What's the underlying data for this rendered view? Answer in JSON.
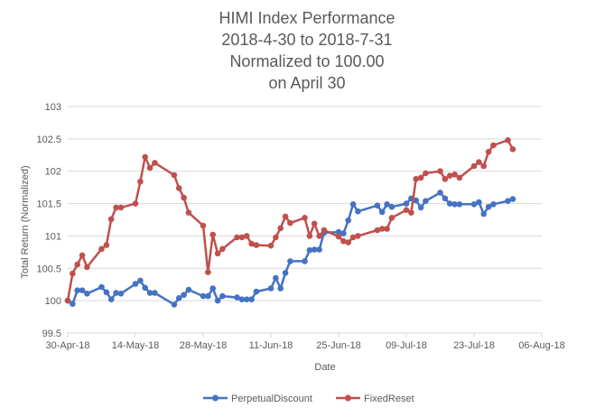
{
  "chart_data": {
    "type": "line",
    "title": [
      "HIMI Index Performance",
      "2018-4-30 to 2018-7-31",
      "Normalized to 100.00",
      "on April 30"
    ],
    "xlabel": "Date",
    "ylabel": "Total Return (Normalized)",
    "x_ticks": [
      "30-Apr-18",
      "14-May-18",
      "28-May-18",
      "11-Jun-18",
      "25-Jun-18",
      "09-Jul-18",
      "23-Jul-18",
      "06-Aug-18"
    ],
    "xlim": [
      "2018-04-30",
      "2018-08-06"
    ],
    "ylim": [
      99.5,
      103
    ],
    "y_ticks": [
      "99.5",
      "100",
      "100.5",
      "101",
      "101.5",
      "102",
      "102.5",
      "103"
    ],
    "grid": true,
    "legend_position": "bottom",
    "colors": {
      "PerpetualDiscount": "#4472c4",
      "FixedReset": "#c0504d"
    },
    "series": [
      {
        "name": "PerpetualDiscount",
        "x": [
          "2018-04-30",
          "2018-05-01",
          "2018-05-02",
          "2018-05-03",
          "2018-05-04",
          "2018-05-07",
          "2018-05-08",
          "2018-05-09",
          "2018-05-10",
          "2018-05-11",
          "2018-05-14",
          "2018-05-15",
          "2018-05-16",
          "2018-05-17",
          "2018-05-18",
          "2018-05-22",
          "2018-05-23",
          "2018-05-24",
          "2018-05-25",
          "2018-05-28",
          "2018-05-29",
          "2018-05-30",
          "2018-05-31",
          "2018-06-01",
          "2018-06-04",
          "2018-06-05",
          "2018-06-06",
          "2018-06-07",
          "2018-06-08",
          "2018-06-11",
          "2018-06-12",
          "2018-06-13",
          "2018-06-14",
          "2018-06-15",
          "2018-06-18",
          "2018-06-19",
          "2018-06-20",
          "2018-06-21",
          "2018-06-22",
          "2018-06-25",
          "2018-06-26",
          "2018-06-27",
          "2018-06-28",
          "2018-06-29",
          "2018-07-03",
          "2018-07-04",
          "2018-07-05",
          "2018-07-06",
          "2018-07-09",
          "2018-07-10",
          "2018-07-11",
          "2018-07-12",
          "2018-07-13",
          "2018-07-16",
          "2018-07-17",
          "2018-07-18",
          "2018-07-19",
          "2018-07-20",
          "2018-07-23",
          "2018-07-24",
          "2018-07-25",
          "2018-07-26",
          "2018-07-27",
          "2018-07-30",
          "2018-07-31"
        ],
        "values": [
          100.0,
          99.95,
          100.16,
          100.16,
          100.11,
          100.21,
          100.13,
          100.02,
          100.12,
          100.11,
          100.26,
          100.31,
          100.2,
          100.12,
          100.12,
          99.94,
          100.04,
          100.09,
          100.17,
          100.07,
          100.07,
          100.19,
          100.0,
          100.07,
          100.05,
          100.02,
          100.02,
          100.02,
          100.14,
          100.19,
          100.35,
          100.19,
          100.43,
          100.61,
          100.61,
          100.78,
          100.79,
          100.79,
          101.05,
          101.06,
          101.04,
          101.24,
          101.49,
          101.38,
          101.47,
          101.37,
          101.49,
          101.45,
          101.5,
          101.58,
          101.55,
          101.44,
          101.54,
          101.67,
          101.58,
          101.5,
          101.49,
          101.49,
          101.49,
          101.52,
          101.34,
          101.45,
          101.49,
          101.54,
          101.57
        ]
      },
      {
        "name": "FixedReset",
        "x": [
          "2018-04-30",
          "2018-05-01",
          "2018-05-02",
          "2018-05-03",
          "2018-05-04",
          "2018-05-07",
          "2018-05-08",
          "2018-05-09",
          "2018-05-10",
          "2018-05-11",
          "2018-05-14",
          "2018-05-15",
          "2018-05-16",
          "2018-05-17",
          "2018-05-18",
          "2018-05-22",
          "2018-05-23",
          "2018-05-24",
          "2018-05-25",
          "2018-05-28",
          "2018-05-29",
          "2018-05-30",
          "2018-05-31",
          "2018-06-01",
          "2018-06-04",
          "2018-06-05",
          "2018-06-06",
          "2018-06-07",
          "2018-06-08",
          "2018-06-11",
          "2018-06-12",
          "2018-06-13",
          "2018-06-14",
          "2018-06-15",
          "2018-06-18",
          "2018-06-19",
          "2018-06-20",
          "2018-06-21",
          "2018-06-22",
          "2018-06-25",
          "2018-06-26",
          "2018-06-27",
          "2018-06-28",
          "2018-06-29",
          "2018-07-03",
          "2018-07-04",
          "2018-07-05",
          "2018-07-06",
          "2018-07-09",
          "2018-07-10",
          "2018-07-11",
          "2018-07-12",
          "2018-07-13",
          "2018-07-16",
          "2018-07-17",
          "2018-07-18",
          "2018-07-19",
          "2018-07-20",
          "2018-07-23",
          "2018-07-24",
          "2018-07-25",
          "2018-07-26",
          "2018-07-27",
          "2018-07-30",
          "2018-07-31"
        ],
        "values": [
          100.0,
          100.42,
          100.56,
          100.7,
          100.52,
          100.8,
          100.86,
          101.26,
          101.44,
          101.44,
          101.5,
          101.84,
          102.22,
          102.05,
          102.13,
          101.94,
          101.74,
          101.59,
          101.36,
          101.16,
          100.44,
          101.02,
          100.73,
          100.8,
          100.98,
          100.98,
          101.0,
          100.88,
          100.86,
          100.85,
          100.98,
          101.12,
          101.3,
          101.2,
          101.28,
          101.0,
          101.19,
          101.0,
          101.09,
          100.99,
          100.92,
          100.9,
          100.98,
          101.0,
          101.09,
          101.11,
          101.11,
          101.28,
          101.4,
          101.36,
          101.88,
          101.9,
          101.97,
          102.0,
          101.88,
          101.93,
          101.95,
          101.9,
          102.08,
          102.14,
          102.08,
          102.3,
          102.4,
          102.48,
          102.34
        ]
      }
    ]
  }
}
